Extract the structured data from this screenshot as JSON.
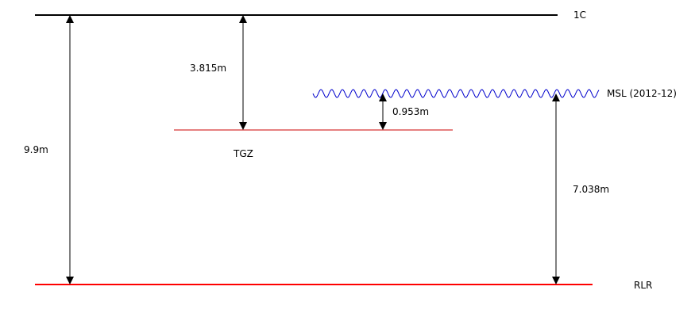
{
  "levels": {
    "top": {
      "label": "1C",
      "color": "#000000"
    },
    "msl": {
      "label": "MSL (2012-12)",
      "color": "#0000cc"
    },
    "tgz": {
      "label": "TGZ",
      "color": "#cc0000"
    },
    "rlr": {
      "label": "RLR",
      "color": "#ff0000"
    }
  },
  "measurements": {
    "top_to_rlr": "9.9m",
    "top_to_tgz": "3.815m",
    "msl_to_tgz": "0.953m",
    "msl_to_rlr": "7.038m"
  },
  "colors": {
    "arrow": "#000000",
    "background": "#ffffff"
  }
}
